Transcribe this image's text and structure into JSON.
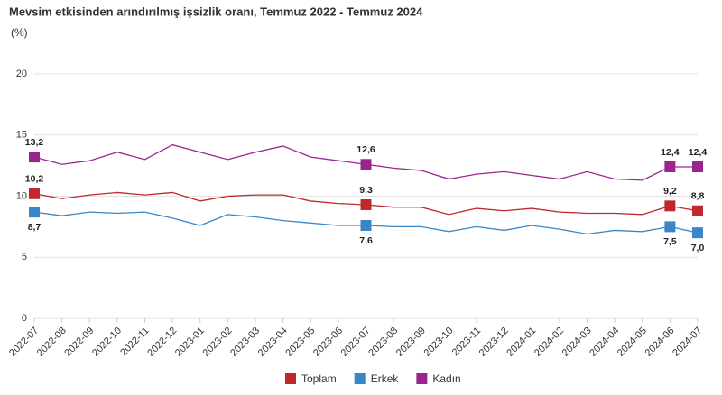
{
  "chart_data": {
    "type": "line",
    "title": "Mevsim etkisinden arındırılmış işsizlik oranı, Temmuz 2022 - Temmuz 2024",
    "y_label": "(%)",
    "categories": [
      "2022-07",
      "2022-08",
      "2022-09",
      "2022-10",
      "2022-11",
      "2022-12",
      "2023-01",
      "2023-02",
      "2023-03",
      "2023-04",
      "2023-05",
      "2023-06",
      "2023-07",
      "2023-08",
      "2023-09",
      "2023-10",
      "2023-11",
      "2023-12",
      "2024-01",
      "2024-02",
      "2024-03",
      "2024-04",
      "2024-05",
      "2024-06",
      "2024-07"
    ],
    "series": [
      {
        "name": "Toplam",
        "color": "#c0282d",
        "values": [
          10.2,
          9.8,
          10.1,
          10.3,
          10.1,
          10.3,
          9.6,
          10.0,
          10.1,
          10.1,
          9.6,
          9.4,
          9.3,
          9.1,
          9.1,
          8.5,
          9.0,
          8.8,
          9.0,
          8.7,
          8.6,
          8.6,
          8.5,
          9.2,
          8.8
        ],
        "value_labels": [
          "10,2",
          null,
          null,
          null,
          null,
          null,
          null,
          null,
          null,
          null,
          null,
          null,
          "9,3",
          null,
          null,
          null,
          null,
          null,
          null,
          null,
          null,
          null,
          null,
          "9,2",
          "8,8"
        ]
      },
      {
        "name": "Erkek",
        "color": "#3a87c8",
        "values": [
          8.7,
          8.4,
          8.7,
          8.6,
          8.7,
          8.2,
          7.6,
          8.5,
          8.3,
          8.0,
          7.8,
          7.6,
          7.6,
          7.5,
          7.5,
          7.1,
          7.5,
          7.2,
          7.6,
          7.3,
          6.9,
          7.2,
          7.1,
          7.5,
          7.0
        ],
        "value_labels": [
          "8,7",
          null,
          null,
          null,
          null,
          null,
          null,
          null,
          null,
          null,
          null,
          null,
          "7,6",
          null,
          null,
          null,
          null,
          null,
          null,
          null,
          null,
          null,
          null,
          "7,5",
          "7,0"
        ]
      },
      {
        "name": "Kadın",
        "color": "#9b2590",
        "values": [
          13.2,
          12.6,
          12.9,
          13.6,
          13.0,
          14.2,
          13.6,
          13.0,
          13.6,
          14.1,
          13.2,
          12.9,
          12.6,
          12.3,
          12.1,
          11.4,
          11.8,
          12.0,
          11.7,
          11.4,
          12.0,
          11.4,
          11.3,
          12.4,
          12.4
        ],
        "value_labels": [
          "13,2",
          null,
          null,
          null,
          null,
          null,
          null,
          null,
          null,
          null,
          null,
          null,
          "12,6",
          null,
          null,
          null,
          null,
          null,
          null,
          null,
          null,
          null,
          null,
          "12,4",
          "12,4"
        ]
      }
    ],
    "ylim": [
      0,
      20
    ],
    "yticks": [
      0,
      5,
      10,
      15,
      20
    ],
    "grid": true
  }
}
